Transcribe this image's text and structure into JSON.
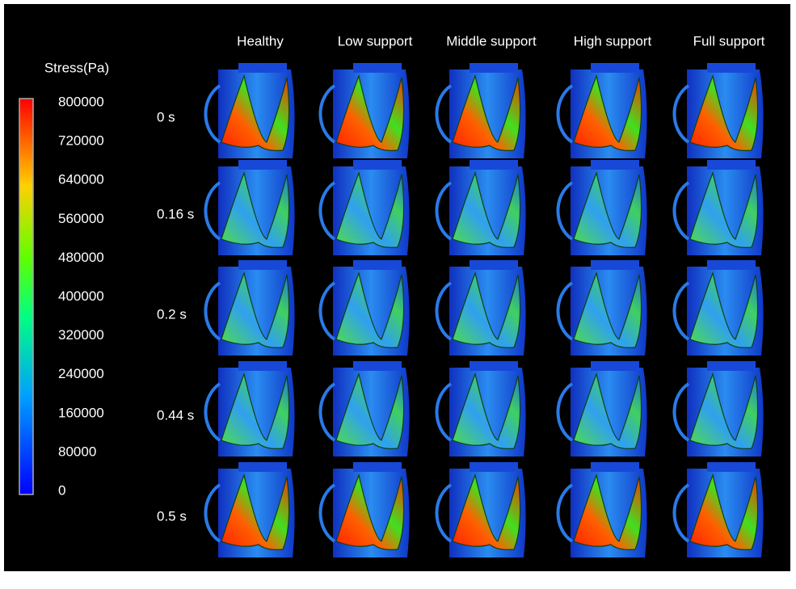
{
  "colorbar": {
    "label": "Stress(Pa)",
    "lim": [
      0,
      800000
    ],
    "ticks": [
      0,
      80000,
      160000,
      240000,
      320000,
      400000,
      480000,
      560000,
      640000,
      720000,
      800000
    ]
  },
  "columns": [
    "Healthy",
    "Low support",
    "Middle support",
    "High support",
    "Full support"
  ],
  "rows": [
    "0 s",
    "0.16 s",
    "0.2 s",
    "0.44 s",
    "0.5 s"
  ]
}
